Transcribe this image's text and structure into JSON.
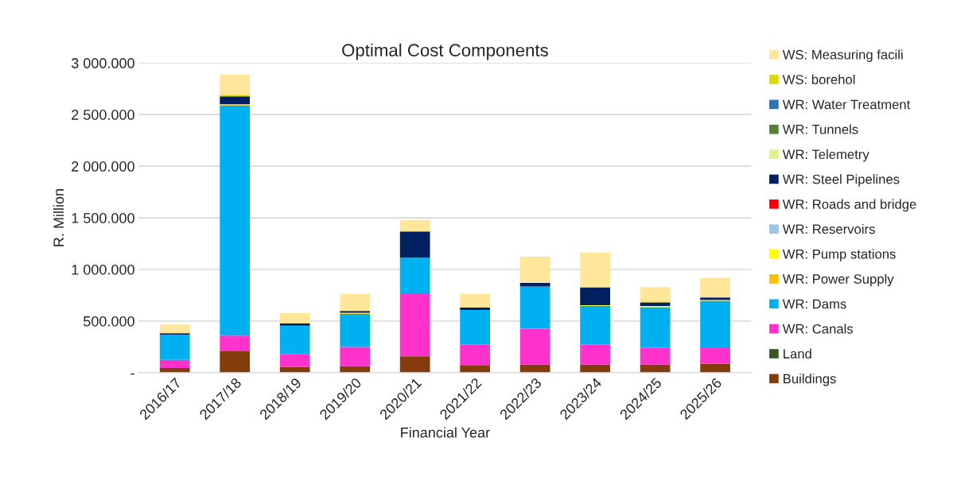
{
  "chart_data": {
    "type": "bar",
    "title": "Optimal Cost Components",
    "xlabel": "Financial Year",
    "ylabel": "R. Million",
    "categories": [
      "2016/17",
      "2017/18",
      "2018/19",
      "2019/20",
      "2020/21",
      "2021/22",
      "2022/23",
      "2023/24",
      "2024/25",
      "2025/26"
    ],
    "stacked": true,
    "grid": "y",
    "legend": "right",
    "ylim": [
      0,
      3000
    ],
    "yticks": [
      {
        "value": 0,
        "label": "-"
      },
      {
        "value": 500,
        "label": "500.000"
      },
      {
        "value": 1000,
        "label": "1 000.000"
      },
      {
        "value": 1500,
        "label": "1 500.000"
      },
      {
        "value": 2000,
        "label": "2 000.000"
      },
      {
        "value": 2500,
        "label": "2 500.000"
      },
      {
        "value": 3000,
        "label": "3 000.000"
      }
    ],
    "series": [
      {
        "name": "Buildings",
        "color": "#843c0c",
        "values": [
          46,
          207,
          56,
          62,
          159,
          68,
          78,
          78,
          78,
          86
        ]
      },
      {
        "name": "Land",
        "color": "#375623",
        "values": [
          0,
          0,
          0,
          0,
          0,
          0,
          0,
          0,
          0,
          0
        ]
      },
      {
        "name": "WR: Canals",
        "color": "#ff33cc",
        "values": [
          78,
          153,
          122,
          188,
          602,
          207,
          349,
          197,
          162,
          160
        ]
      },
      {
        "name": "WR: Dams",
        "color": "#00b0f0",
        "values": [
          244,
          2228,
          277,
          320,
          353,
          333,
          408,
          373,
          395,
          451
        ]
      },
      {
        "name": "WR: Power Supply",
        "color": "#ffc000",
        "values": [
          null,
          13,
          0,
          5,
          0,
          0,
          0,
          0,
          0,
          8
        ]
      },
      {
        "name": "WR: Pump stations",
        "color": "#ffff00",
        "values": [
          0,
          0,
          0,
          6,
          null,
          0,
          0,
          6,
          11,
          0
        ]
      },
      {
        "name": "WR: Reservoirs",
        "color": "#9dc3e6",
        "values": [
          0,
          0,
          0,
          0,
          0,
          0,
          0,
          0,
          0,
          0
        ]
      },
      {
        "name": "WR: Roads and bridge",
        "color": "#ff0000",
        "values": [
          0,
          0,
          0,
          0,
          0,
          0,
          0,
          0,
          0,
          0
        ]
      },
      {
        "name": "WR: Steel Pipelines",
        "color": "#002060",
        "values": [
          15,
          75,
          21,
          16,
          253,
          22,
          35,
          173,
          34,
          24
        ]
      },
      {
        "name": "WR: Telemetry",
        "color": "#dff58c",
        "values": [
          0,
          0,
          0,
          0,
          0,
          0,
          8,
          0,
          0,
          0
        ]
      },
      {
        "name": "WR: Tunnels",
        "color": "#548235",
        "values": [
          0,
          0,
          0,
          0,
          0,
          0,
          0,
          0,
          0,
          0
        ]
      },
      {
        "name": "WR: Water Treatment",
        "color": "#2e75b6",
        "values": [
          0,
          0,
          0,
          0,
          0,
          0,
          0,
          0,
          0,
          0
        ]
      },
      {
        "name": "WS: borehol",
        "color": "#dcd800",
        "values": [
          0,
          15,
          0,
          0,
          0,
          0,
          0,
          0,
          11,
          0
        ]
      },
      {
        "name": "WS: Measuring facili",
        "color": "#ffe699",
        "values": [
          84,
          195,
          100,
          167,
          113,
          134,
          246,
          337,
          138,
          189
        ]
      }
    ]
  }
}
